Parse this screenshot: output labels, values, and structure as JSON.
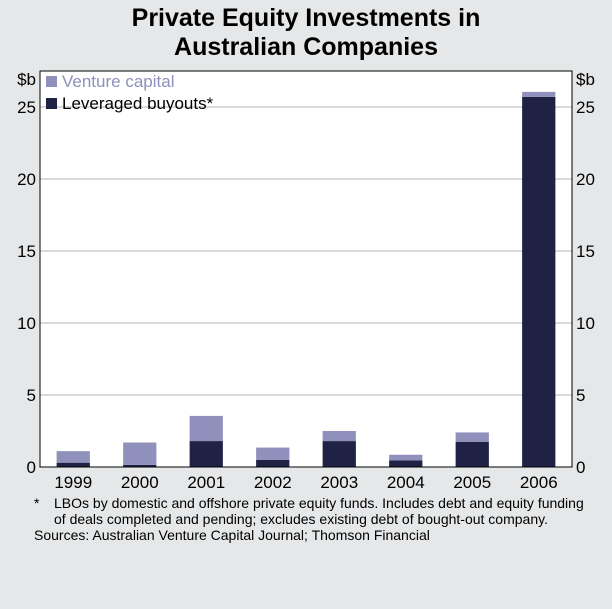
{
  "chart_data": {
    "type": "bar",
    "stacked": true,
    "title_lines": [
      "Private Equity Investments in",
      "Australian Companies"
    ],
    "categories": [
      "1999",
      "2000",
      "2001",
      "2002",
      "2003",
      "2004",
      "2005",
      "2006"
    ],
    "series": [
      {
        "name": "Leveraged buyouts*",
        "values": [
          0.3,
          0.15,
          1.8,
          0.5,
          1.8,
          0.45,
          1.75,
          25.7
        ],
        "color": "#1f2145"
      },
      {
        "name": "Venture capital",
        "values": [
          0.8,
          1.55,
          1.75,
          0.85,
          0.7,
          0.4,
          0.65,
          0.35
        ],
        "color": "#8f90bb"
      }
    ],
    "legend_order": [
      1,
      0
    ],
    "y_unit_left": "$b",
    "y_unit_right": "$b",
    "yticks": [
      0,
      5,
      10,
      15,
      20,
      25
    ],
    "ylim": [
      0,
      27.5
    ],
    "grid": true,
    "legend_position": "top-left"
  },
  "notes": {
    "footnote_mark": "*",
    "footnote": "LBOs by domestic and offshore private equity funds. Includes debt and equity funding of deals completed and pending; excludes existing debt of bought-out company.",
    "sources": "Sources: Australian Venture Capital Journal; Thomson Financial"
  }
}
